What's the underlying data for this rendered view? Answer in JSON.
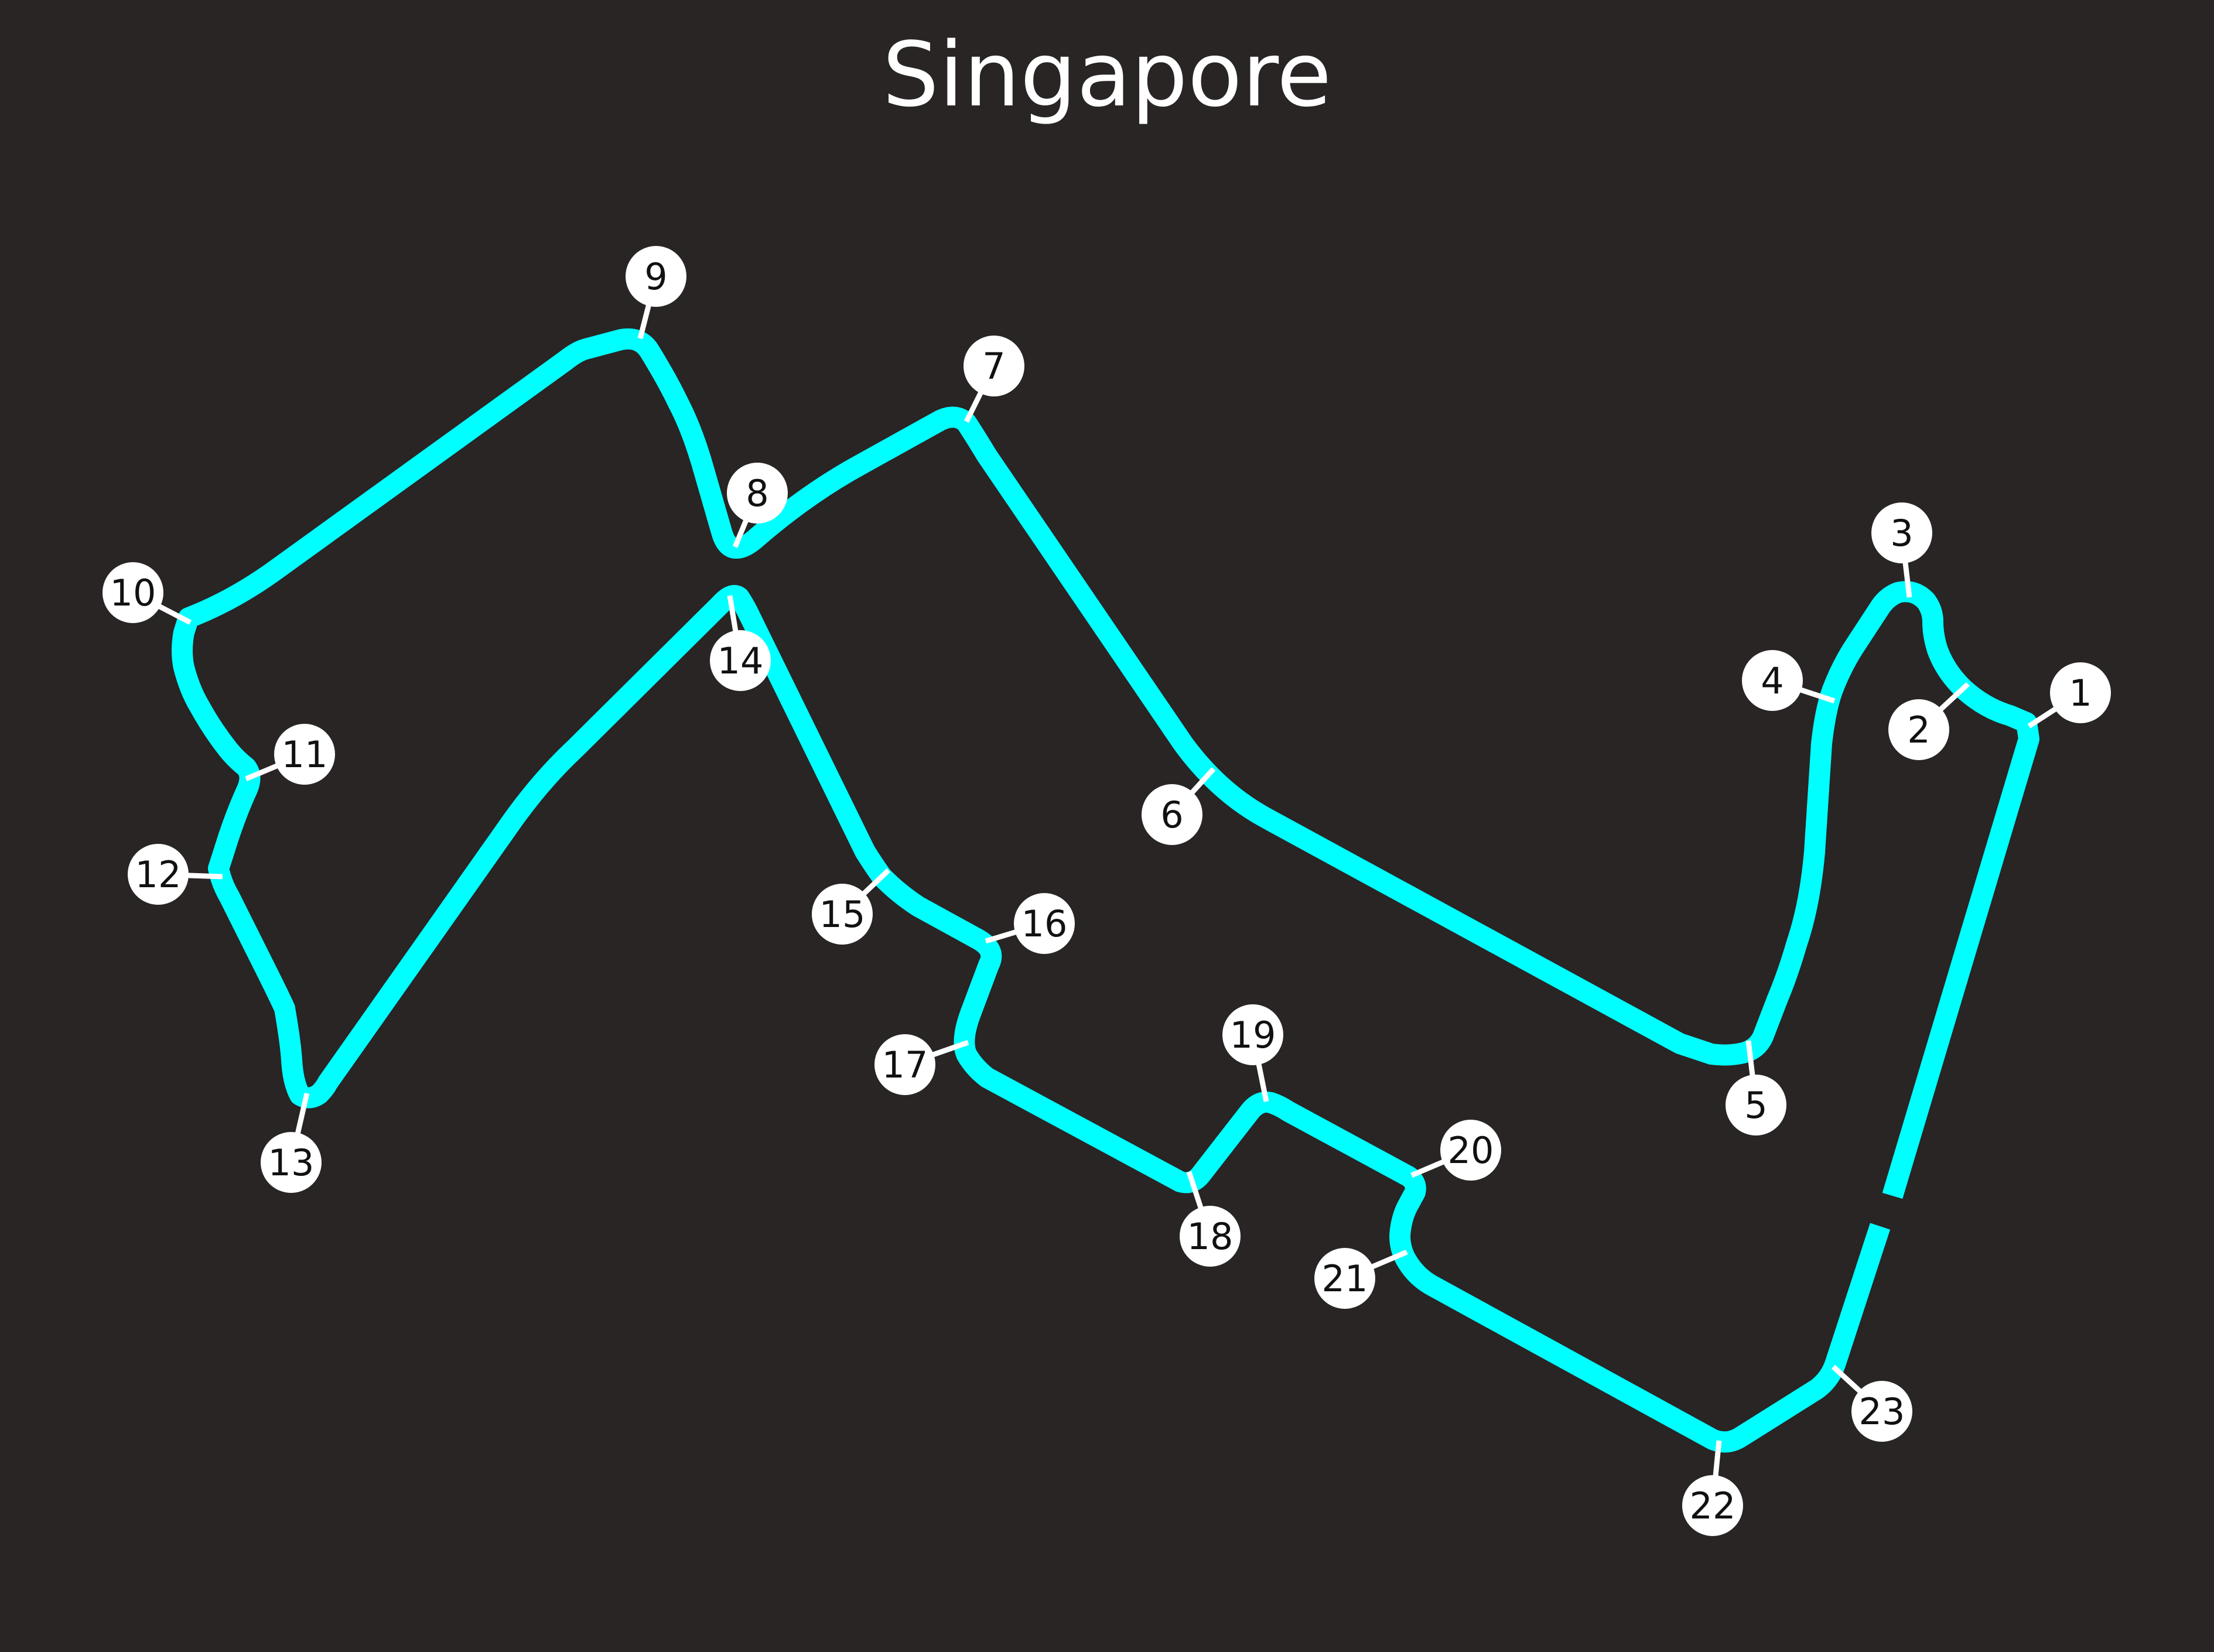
{
  "map": {
    "title": "Singapore",
    "track_color": "#00FFFF",
    "background_color": "#282524",
    "marker_color": "#FFFFFF",
    "label_color": "#111111"
  },
  "corners": [
    "1",
    "2",
    "3",
    "4",
    "5",
    "6",
    "7",
    "8",
    "9",
    "10",
    "11",
    "12",
    "13",
    "14",
    "15",
    "16",
    "17",
    "18",
    "19",
    "20",
    "21",
    "22",
    "23"
  ]
}
